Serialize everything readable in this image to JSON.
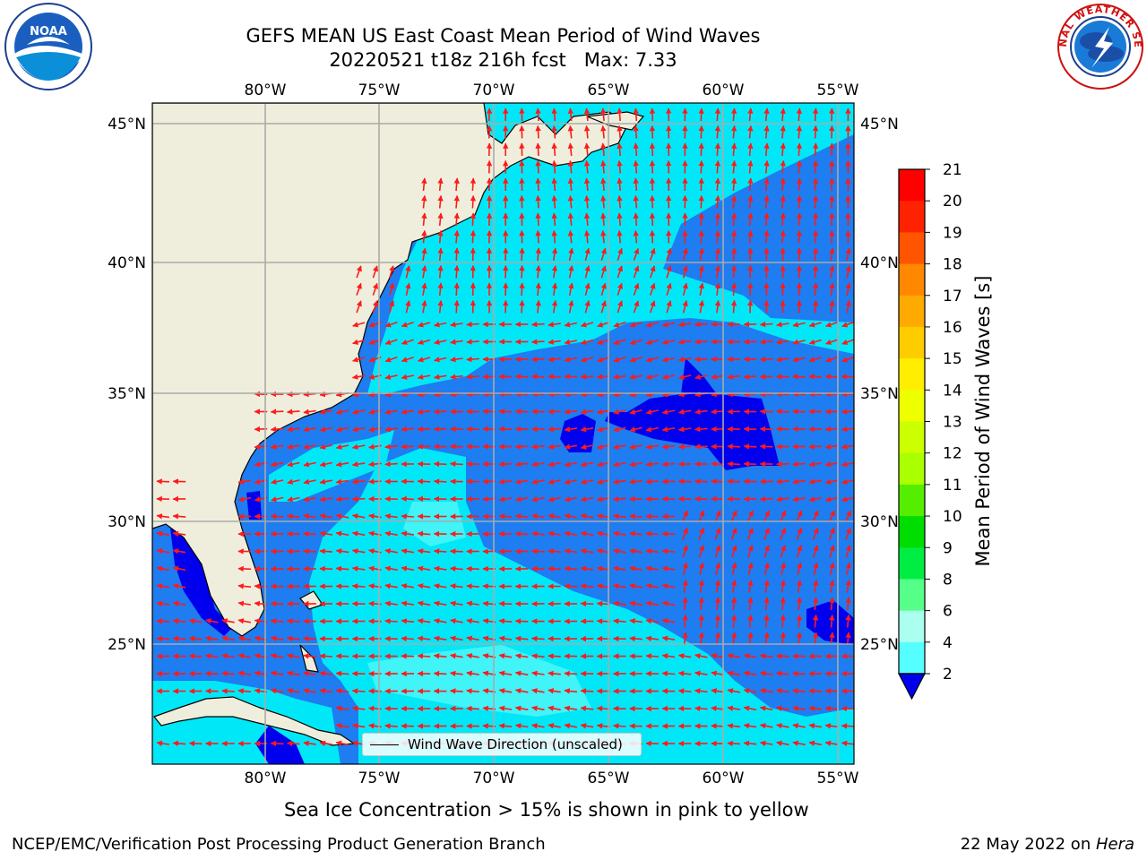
{
  "header": {
    "title_line1": "GEFS MEAN US East Coast Mean Period of Wind Waves",
    "title_line2": "20220521 t18z 216h fcst   Max: 7.33"
  },
  "logos": {
    "left": {
      "icon": "noaa-logo-icon",
      "text": "NOAA",
      "ring_text": "NATIONAL OCEANIC AND ATMOSPHERIC ADMINISTRATION · U.S. DEPARTMENT OF COMMERCE"
    },
    "right": {
      "icon": "nws-logo-icon",
      "ring_text": "NATIONAL WEATHER SERVICE"
    }
  },
  "map": {
    "lon_labels": [
      "80°W",
      "75°W",
      "70°W",
      "65°W",
      "60°W",
      "55°W"
    ],
    "lat_labels": [
      "45°N",
      "40°N",
      "35°N",
      "30°N",
      "25°N"
    ],
    "legend": {
      "label": "Wind Wave Direction (unscaled)"
    },
    "colors": {
      "land": "#efeedc",
      "class_2_4": "#1e7df0",
      "class_4_6": "#00e8f8",
      "class_6_8": "#40f4f8",
      "below_2": "#0000ee",
      "arrow": "#ff1a1a",
      "grid": "#aaaaaa"
    }
  },
  "colorbar": {
    "label": "Mean Period of Wind Waves [s]",
    "ticks": [
      "21",
      "20",
      "19",
      "18",
      "17",
      "16",
      "15",
      "14",
      "13",
      "12",
      "11",
      "10",
      "9",
      "8",
      "6",
      "4",
      "2"
    ],
    "colors": [
      "#ff0000",
      "#ff2200",
      "#ff5500",
      "#ff8800",
      "#ffaa00",
      "#ffcc00",
      "#ffee00",
      "#eeff00",
      "#ccff00",
      "#aaff00",
      "#55ee00",
      "#00dd00",
      "#00ee44",
      "#55ff88",
      "#aaffee",
      "#55ffff",
      "#00eeff",
      "#1e7df0"
    ],
    "extend_color": "#0000ee"
  },
  "footer": {
    "subtitle": "Sea Ice Concentration > 15% is shown in pink to yellow",
    "left": "NCEP/EMC/Verification Post Processing Product Generation Branch",
    "right_date": "22 May 2022 on ",
    "right_host": "Hera"
  }
}
